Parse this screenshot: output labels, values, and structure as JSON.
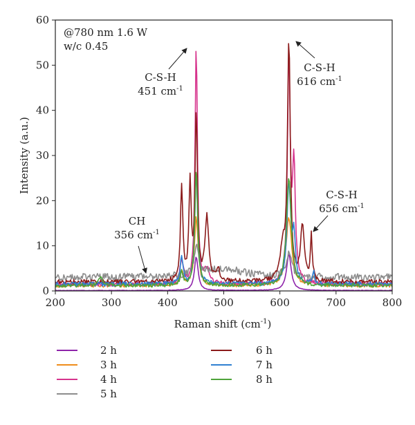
{
  "chart_data": {
    "type": "line",
    "xlabel": "Raman shift (cm",
    "xlabel_sup": "-1",
    "xlabel_tail": ")",
    "ylabel": "Intensity (a.u.)",
    "xlim": [
      200,
      800
    ],
    "ylim": [
      0,
      60
    ],
    "xticks": [
      "200",
      "300",
      "400",
      "500",
      "600",
      "700",
      "800"
    ],
    "yticks": [
      "0",
      "10",
      "20",
      "30",
      "40",
      "50",
      "60"
    ],
    "grid": false,
    "legend_position": "bottom",
    "info_lines": [
      "@780 nm 1.6 W",
      "w/c 0.45"
    ],
    "annotations": [
      {
        "line1": "C-S-H",
        "line2": "451 cm",
        "sup": "-1",
        "x": 451,
        "y": 54
      },
      {
        "line1": "C-S-H",
        "line2": "616 cm",
        "sup": "-1",
        "x": 616,
        "y": 56
      },
      {
        "line1": "C-S-H",
        "line2": "656 cm",
        "sup": "-1",
        "x": 656,
        "y": 12.5
      },
      {
        "line1": "CH",
        "line2": "356 cm",
        "sup": "-1",
        "x": 356,
        "y": 2
      }
    ],
    "series": [
      {
        "name": "2 h",
        "color": "#8e24aa",
        "baseline": 0.1,
        "noise": 0.05,
        "peaks": [
          [
            451,
            7.5,
            4
          ],
          [
            616,
            8,
            5
          ]
        ]
      },
      {
        "name": "3 h",
        "color": "#ef8c1a",
        "baseline": 1.2,
        "noise": 0.4,
        "peaks": [
          [
            451,
            15,
            4
          ],
          [
            616,
            15,
            6
          ],
          [
            425,
            3,
            4
          ],
          [
            660,
            2,
            3
          ]
        ]
      },
      {
        "name": "4 h",
        "color": "#d6338c",
        "baseline": 1.5,
        "noise": 0.5,
        "peaks": [
          [
            451,
            53,
            2.5
          ],
          [
            616,
            49,
            3
          ],
          [
            625,
            25,
            3
          ],
          [
            425,
            5,
            4
          ],
          [
            470,
            3,
            5
          ]
        ]
      },
      {
        "name": "5 h",
        "color": "#8c8c8c",
        "baseline": 3,
        "noise": 0.8,
        "peaks": [
          [
            451,
            6,
            5
          ],
          [
            616,
            5,
            6
          ],
          [
            500,
            2,
            40
          ]
        ]
      },
      {
        "name": "6 h",
        "color": "#8b1a1a",
        "baseline": 2,
        "noise": 0.5,
        "peaks": [
          [
            425,
            21,
            2.5
          ],
          [
            440,
            21,
            2.5
          ],
          [
            451,
            37,
            2.5
          ],
          [
            470,
            14,
            4
          ],
          [
            490,
            3,
            3
          ],
          [
            605,
            7,
            5
          ],
          [
            616,
            53,
            3
          ],
          [
            640,
            12,
            4
          ],
          [
            656,
            10,
            2
          ]
        ]
      },
      {
        "name": "7 h",
        "color": "#2f7fd1",
        "baseline": 1.5,
        "noise": 0.5,
        "peaks": [
          [
            425,
            6,
            3
          ],
          [
            451,
            25,
            3
          ],
          [
            616,
            22,
            4
          ],
          [
            625,
            10,
            3
          ],
          [
            660,
            3,
            2
          ]
        ]
      },
      {
        "name": "8 h",
        "color": "#4ea33a",
        "baseline": 1.2,
        "noise": 0.4,
        "peaks": [
          [
            280,
            2,
            4
          ],
          [
            451,
            26,
            3
          ],
          [
            616,
            24,
            5
          ],
          [
            425,
            3,
            3
          ]
        ]
      }
    ]
  }
}
